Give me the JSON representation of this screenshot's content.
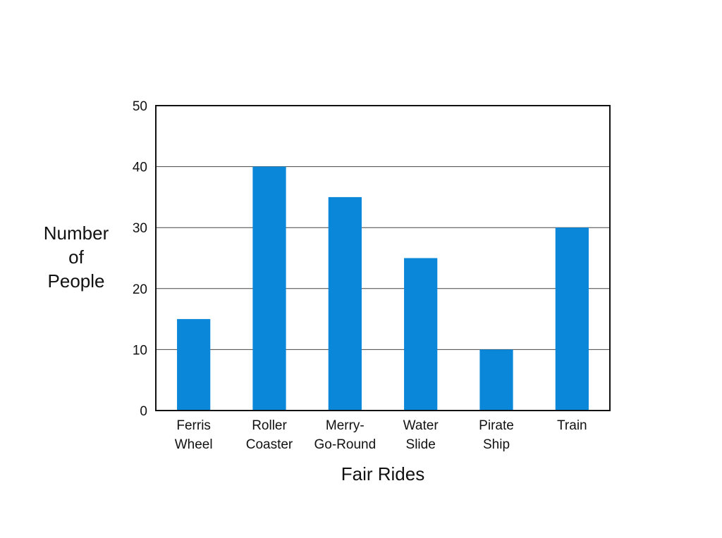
{
  "chart_data": {
    "type": "bar",
    "categories": [
      [
        "Ferris",
        "Wheel"
      ],
      [
        "Roller",
        "Coaster"
      ],
      [
        "Merry-",
        "Go-Round"
      ],
      [
        "Water",
        "Slide"
      ],
      [
        "Pirate",
        "Ship"
      ],
      [
        "Train"
      ]
    ],
    "values": [
      15,
      40,
      35,
      25,
      10,
      30
    ],
    "xlabel": "Fair Rides",
    "ylabel": [
      "Number",
      "of",
      "People"
    ],
    "ylim": [
      0,
      50
    ],
    "yticks": [
      0,
      10,
      20,
      30,
      40,
      50
    ],
    "grid": true,
    "legend": "none",
    "bar_color": "#0a87d8",
    "axis_color": "#111111"
  }
}
